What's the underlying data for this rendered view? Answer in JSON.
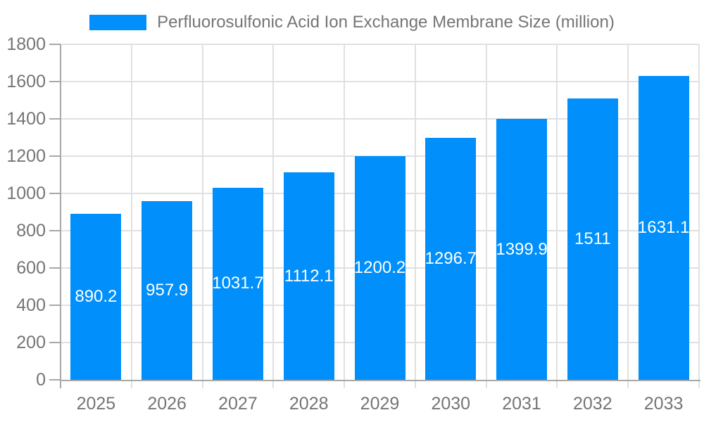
{
  "legend": {
    "label": "Perfluorosulfonic Acid Ion Exchange Membrane Size (million)"
  },
  "chart_data": {
    "type": "bar",
    "title": "Perfluorosulfonic Acid Ion Exchange Membrane Size (million)",
    "categories": [
      "2025",
      "2026",
      "2027",
      "2028",
      "2029",
      "2030",
      "2031",
      "2032",
      "2033"
    ],
    "values": [
      890.2,
      957.9,
      1031.7,
      1112.1,
      1200.2,
      1296.7,
      1399.9,
      1511,
      1631.1
    ],
    "value_labels": [
      "890.2",
      "957.9",
      "1031.7",
      "1112.1",
      "1200.2",
      "1296.7",
      "1399.9",
      "1511",
      "1631.1"
    ],
    "ytick_labels": [
      "0",
      "200",
      "400",
      "600",
      "800",
      "1000",
      "1200",
      "1400",
      "1600",
      "1800"
    ],
    "xlabel": "",
    "ylabel": "",
    "ylim": [
      0,
      1800
    ],
    "ytick_step": 200,
    "grid": true,
    "legend_position": "top",
    "colors": {
      "bar": "#008FFB",
      "grid_line": "#e0e0e0",
      "axis_line": "#a8a8a8",
      "axis_label": "#757575",
      "legend_label": "#757575",
      "value_label": "#ffffff",
      "background": "#ffffff"
    }
  }
}
